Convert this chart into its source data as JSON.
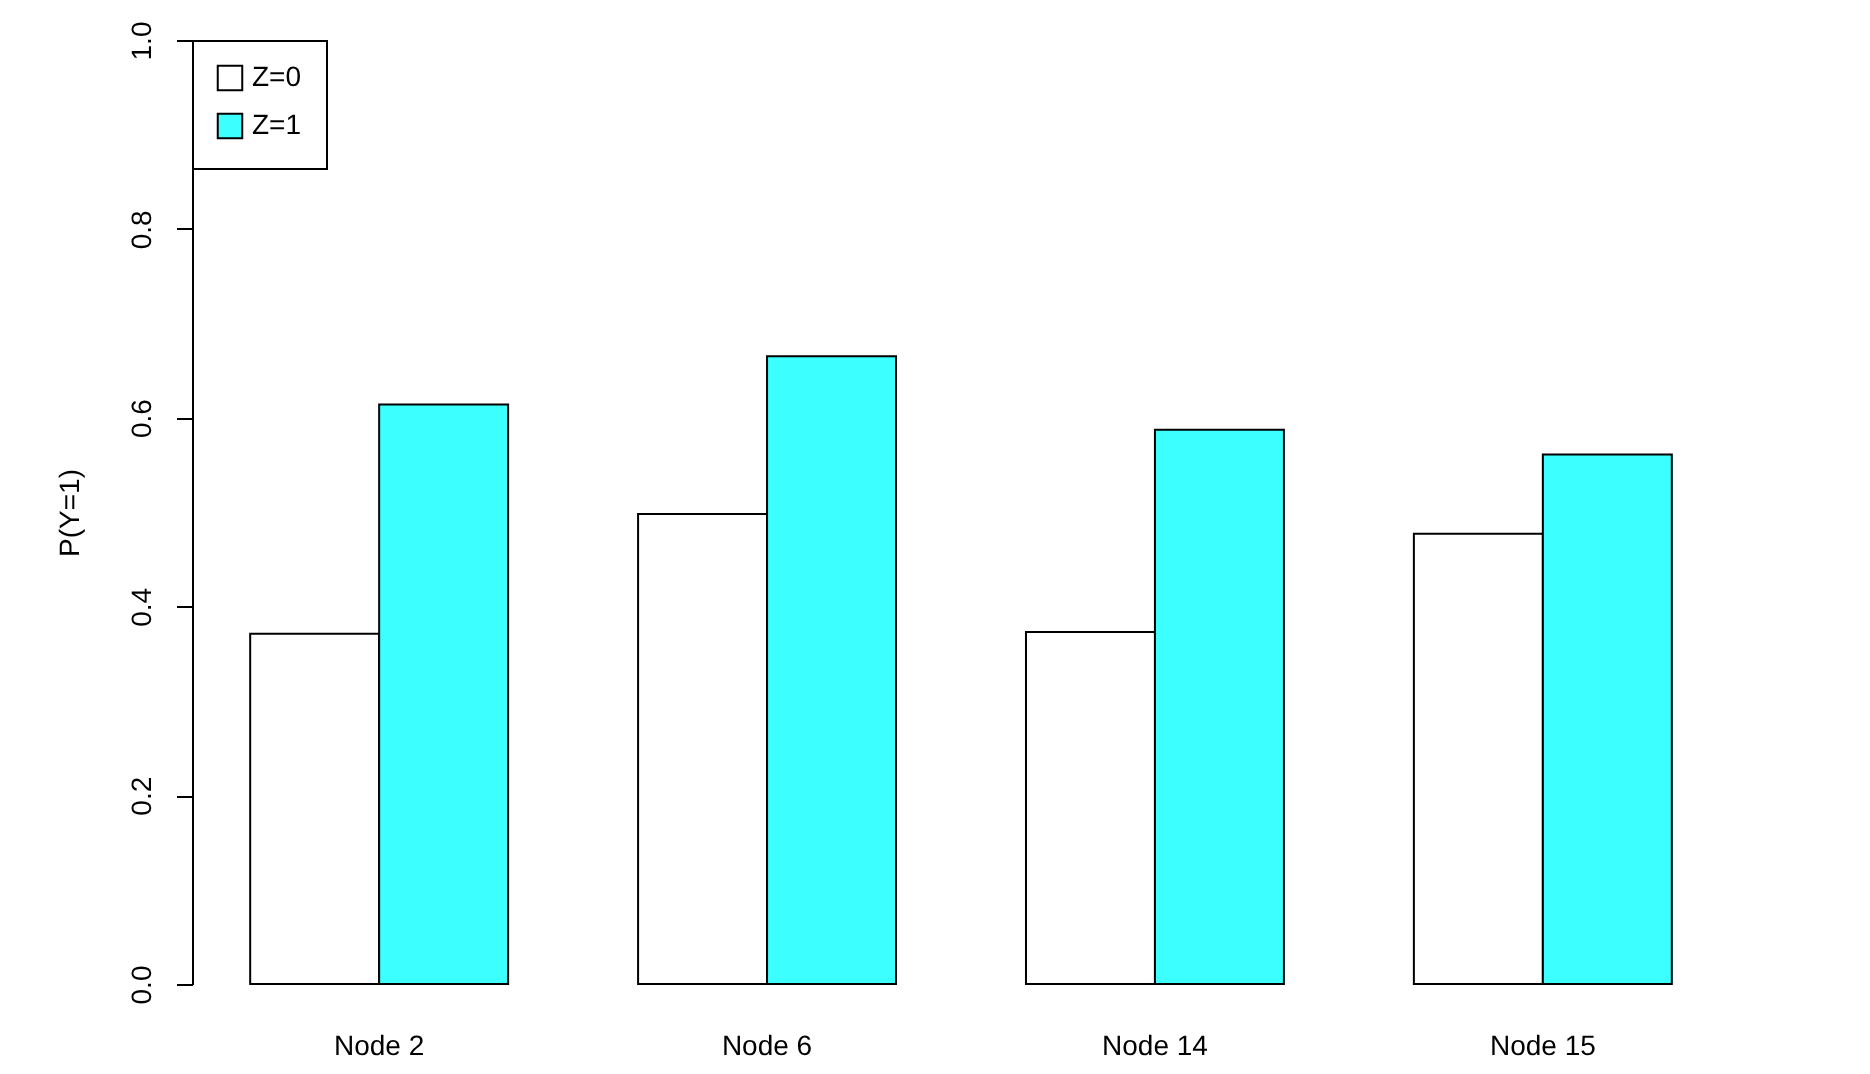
{
  "chart_data": {
    "type": "bar",
    "ylabel": "P(Y=1)",
    "categories": [
      "Node 2",
      "Node 6",
      "Node 14",
      "Node 15"
    ],
    "series": [
      {
        "name": "Z=0",
        "color": "#ffffff",
        "values": [
          0.371,
          0.498,
          0.373,
          0.477
        ]
      },
      {
        "name": "Z=1",
        "color": "#3cffff",
        "values": [
          0.614,
          0.665,
          0.587,
          0.561
        ]
      }
    ],
    "ylim": [
      0,
      1
    ],
    "yticks": [
      {
        "value": 0,
        "label": "0.0"
      },
      0.2,
      0.4,
      0.6,
      0.8,
      {
        "value": 1,
        "label": "1.0"
      }
    ],
    "legend": "top left",
    "grid": false
  }
}
